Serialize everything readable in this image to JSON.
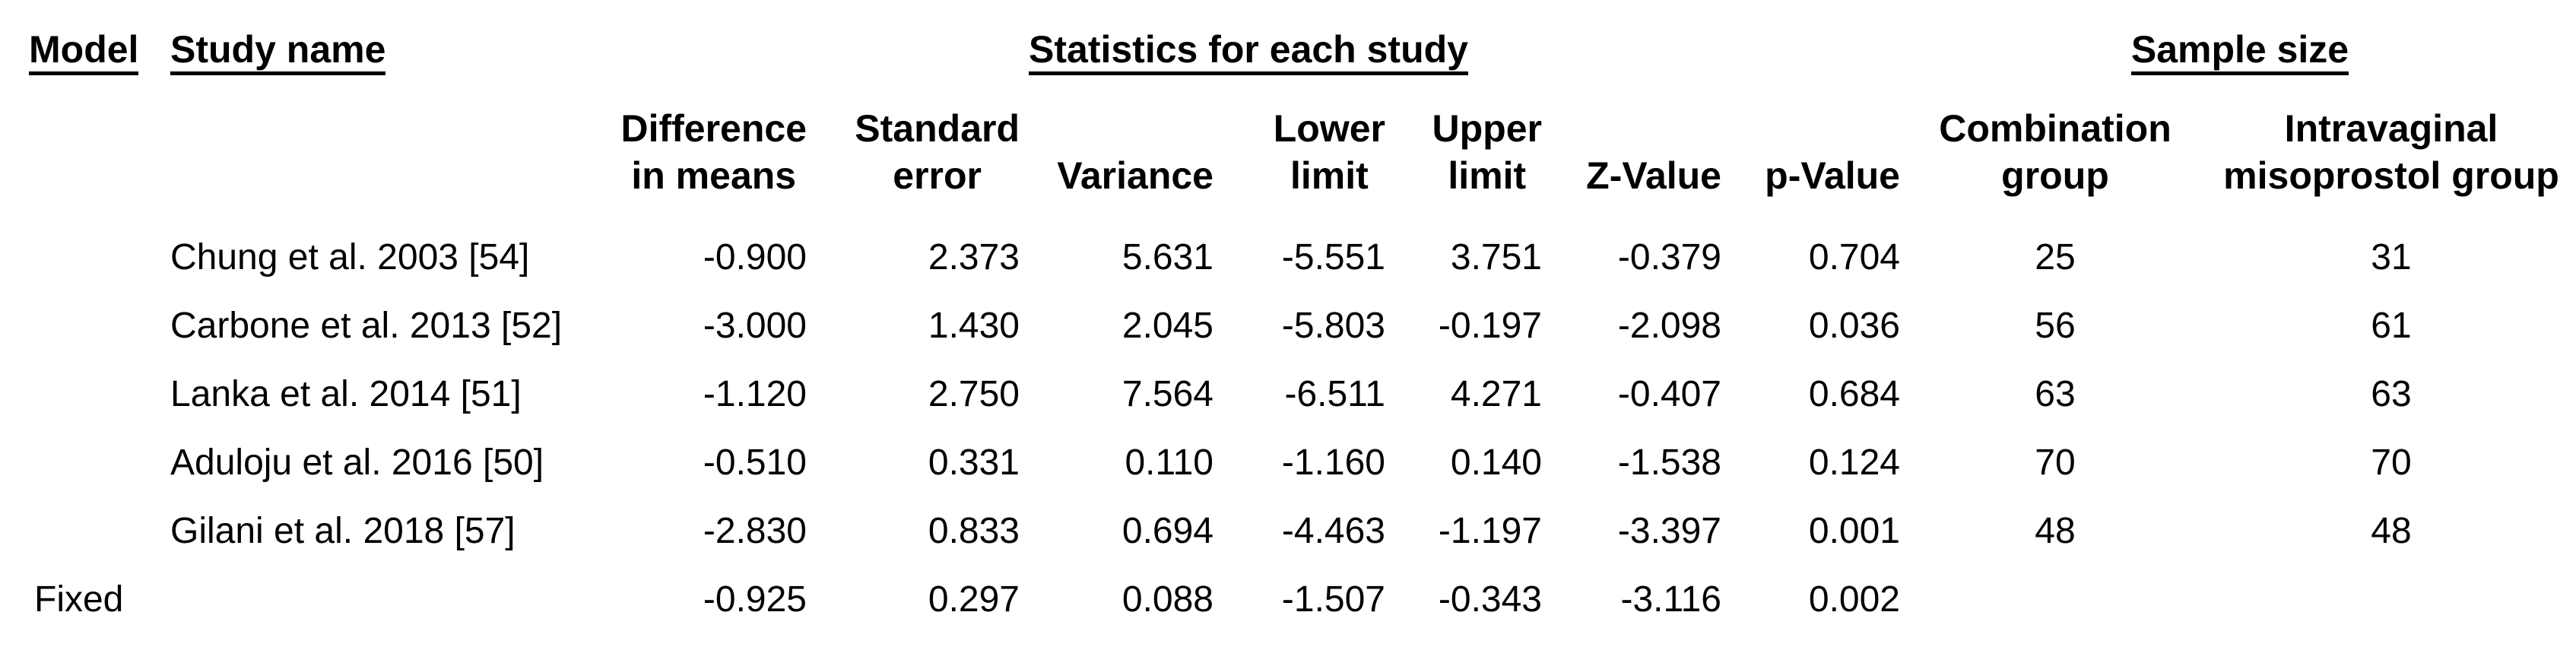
{
  "page": {
    "background_color": "#ffffff",
    "text_color": "#000000"
  },
  "table": {
    "group_headers": {
      "model": "Model",
      "study_name": "Study name",
      "statistics": "Statistics for each study",
      "sample_size": "Sample size"
    },
    "column_headers": {
      "difference_in_means": "Difference\nin means",
      "standard_error": "Standard\nerror",
      "variance": "Variance",
      "lower_limit": "Lower\nlimit",
      "upper_limit": "Upper\nlimit",
      "z_value": "Z-Value",
      "p_value": "p-Value",
      "combination_group": "Combination\ngroup",
      "intravaginal_group": "Intravaginal\nmisoprostol group"
    },
    "rows": [
      {
        "model": "",
        "study": "Chung et al. 2003 [54]",
        "difference_in_means": "-0.900",
        "standard_error": "2.373",
        "variance": "5.631",
        "lower_limit": "-5.551",
        "upper_limit": "3.751",
        "z_value": "-0.379",
        "p_value": "0.704",
        "combination_group": "25",
        "intravaginal_group": "31"
      },
      {
        "model": "",
        "study": "Carbone et al. 2013 [52]",
        "difference_in_means": "-3.000",
        "standard_error": "1.430",
        "variance": "2.045",
        "lower_limit": "-5.803",
        "upper_limit": "-0.197",
        "z_value": "-2.098",
        "p_value": "0.036",
        "combination_group": "56",
        "intravaginal_group": "61"
      },
      {
        "model": "",
        "study": "Lanka et al. 2014 [51]",
        "difference_in_means": "-1.120",
        "standard_error": "2.750",
        "variance": "7.564",
        "lower_limit": "-6.511",
        "upper_limit": "4.271",
        "z_value": "-0.407",
        "p_value": "0.684",
        "combination_group": "63",
        "intravaginal_group": "63"
      },
      {
        "model": "",
        "study": "Aduloju et al. 2016 [50]",
        "difference_in_means": "-0.510",
        "standard_error": "0.331",
        "variance": "0.110",
        "lower_limit": "-1.160",
        "upper_limit": "0.140",
        "z_value": "-1.538",
        "p_value": "0.124",
        "combination_group": "70",
        "intravaginal_group": "70"
      },
      {
        "model": "",
        "study": "Gilani et al. 2018 [57]",
        "difference_in_means": "-2.830",
        "standard_error": "0.833",
        "variance": "0.694",
        "lower_limit": "-4.463",
        "upper_limit": "-1.197",
        "z_value": "-3.397",
        "p_value": "0.001",
        "combination_group": "48",
        "intravaginal_group": "48"
      },
      {
        "model": "Fixed",
        "study": "",
        "difference_in_means": "-0.925",
        "standard_error": "0.297",
        "variance": "0.088",
        "lower_limit": "-1.507",
        "upper_limit": "-0.343",
        "z_value": "-3.116",
        "p_value": "0.002",
        "combination_group": "",
        "intravaginal_group": ""
      }
    ]
  }
}
